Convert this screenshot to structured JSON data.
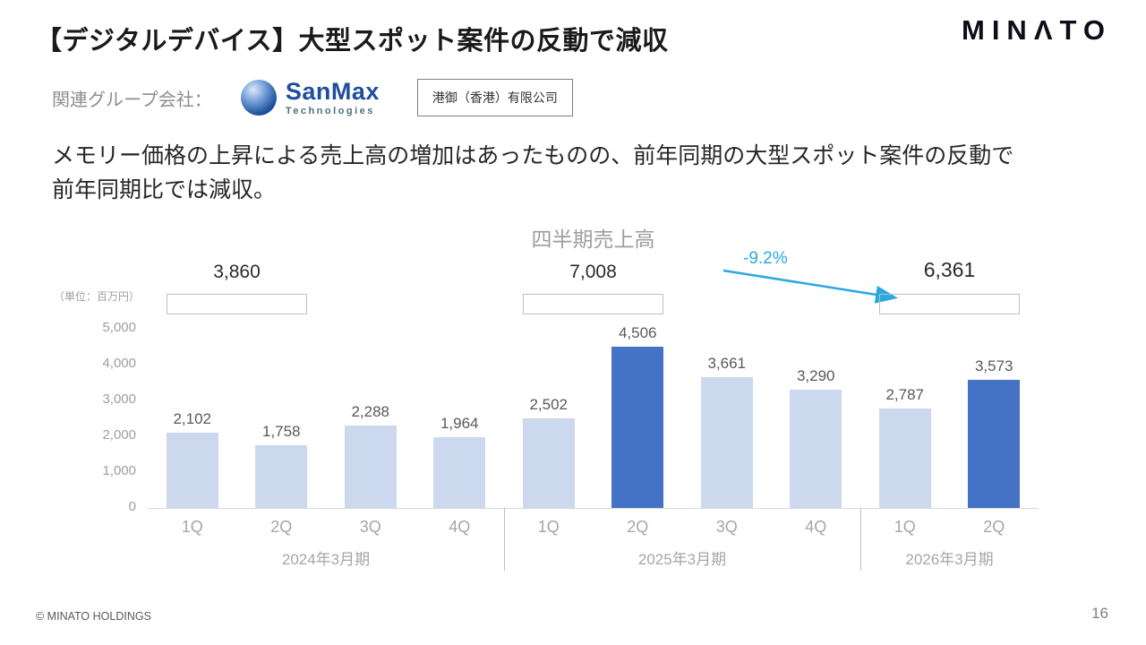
{
  "slide": {
    "title": "【デジタルデバイス】大型スポット案件の反動で減収",
    "brand": "MINΛTO",
    "related_label": "関連グループ会社：",
    "sanmax": {
      "name": "SanMax",
      "sub": "Technologies"
    },
    "company_box": "港御（香港）有限公司",
    "body_line1": "メモリー価格の上昇による売上高の増加はあったものの、前年同期の大型スポット案件の反動で",
    "body_line2": "前年同期比では減収。",
    "footer": "© MINATO HOLDINGS",
    "page_number": "16"
  },
  "chart_data": {
    "type": "bar",
    "title": "四半期売上高",
    "unit_label": "（単位：百万円）",
    "categories": [
      "1Q",
      "2Q",
      "3Q",
      "4Q",
      "1Q",
      "2Q",
      "3Q",
      "4Q",
      "1Q",
      "2Q"
    ],
    "values": [
      2102,
      1758,
      2288,
      1964,
      2502,
      4506,
      3661,
      3290,
      2787,
      3573
    ],
    "labels": [
      "2,102",
      "1,758",
      "2,288",
      "1,964",
      "2,502",
      "4,506",
      "3,661",
      "3,290",
      "2,787",
      "3,573"
    ],
    "highlight_indices": [
      5,
      9
    ],
    "groups": [
      {
        "label": "2024年3月期",
        "span": [
          0,
          3
        ],
        "bracket_span": [
          0,
          1
        ],
        "total": "3,860",
        "emphasis": false
      },
      {
        "label": "2025年3月期",
        "span": [
          4,
          7
        ],
        "bracket_span": [
          4,
          5
        ],
        "total": "7,008",
        "emphasis": false
      },
      {
        "label": "2026年3月期",
        "span": [
          8,
          9
        ],
        "bracket_span": [
          8,
          9
        ],
        "total": "6,361",
        "emphasis": true
      }
    ],
    "annotation": "-9.2%",
    "ylim": [
      0,
      5000
    ],
    "yticks": [
      "5,000",
      "4,000",
      "3,000",
      "2,000",
      "1,000",
      "0"
    ],
    "grid": false,
    "legend": "none",
    "colors": {
      "bar": "#ccd8ee",
      "bar_highlight": "#4472c4",
      "arrow": "#2aa8e0",
      "annotation_text": "#2aa8e0"
    },
    "icons": {
      "decline_arrow": "down-right-arrow"
    }
  }
}
